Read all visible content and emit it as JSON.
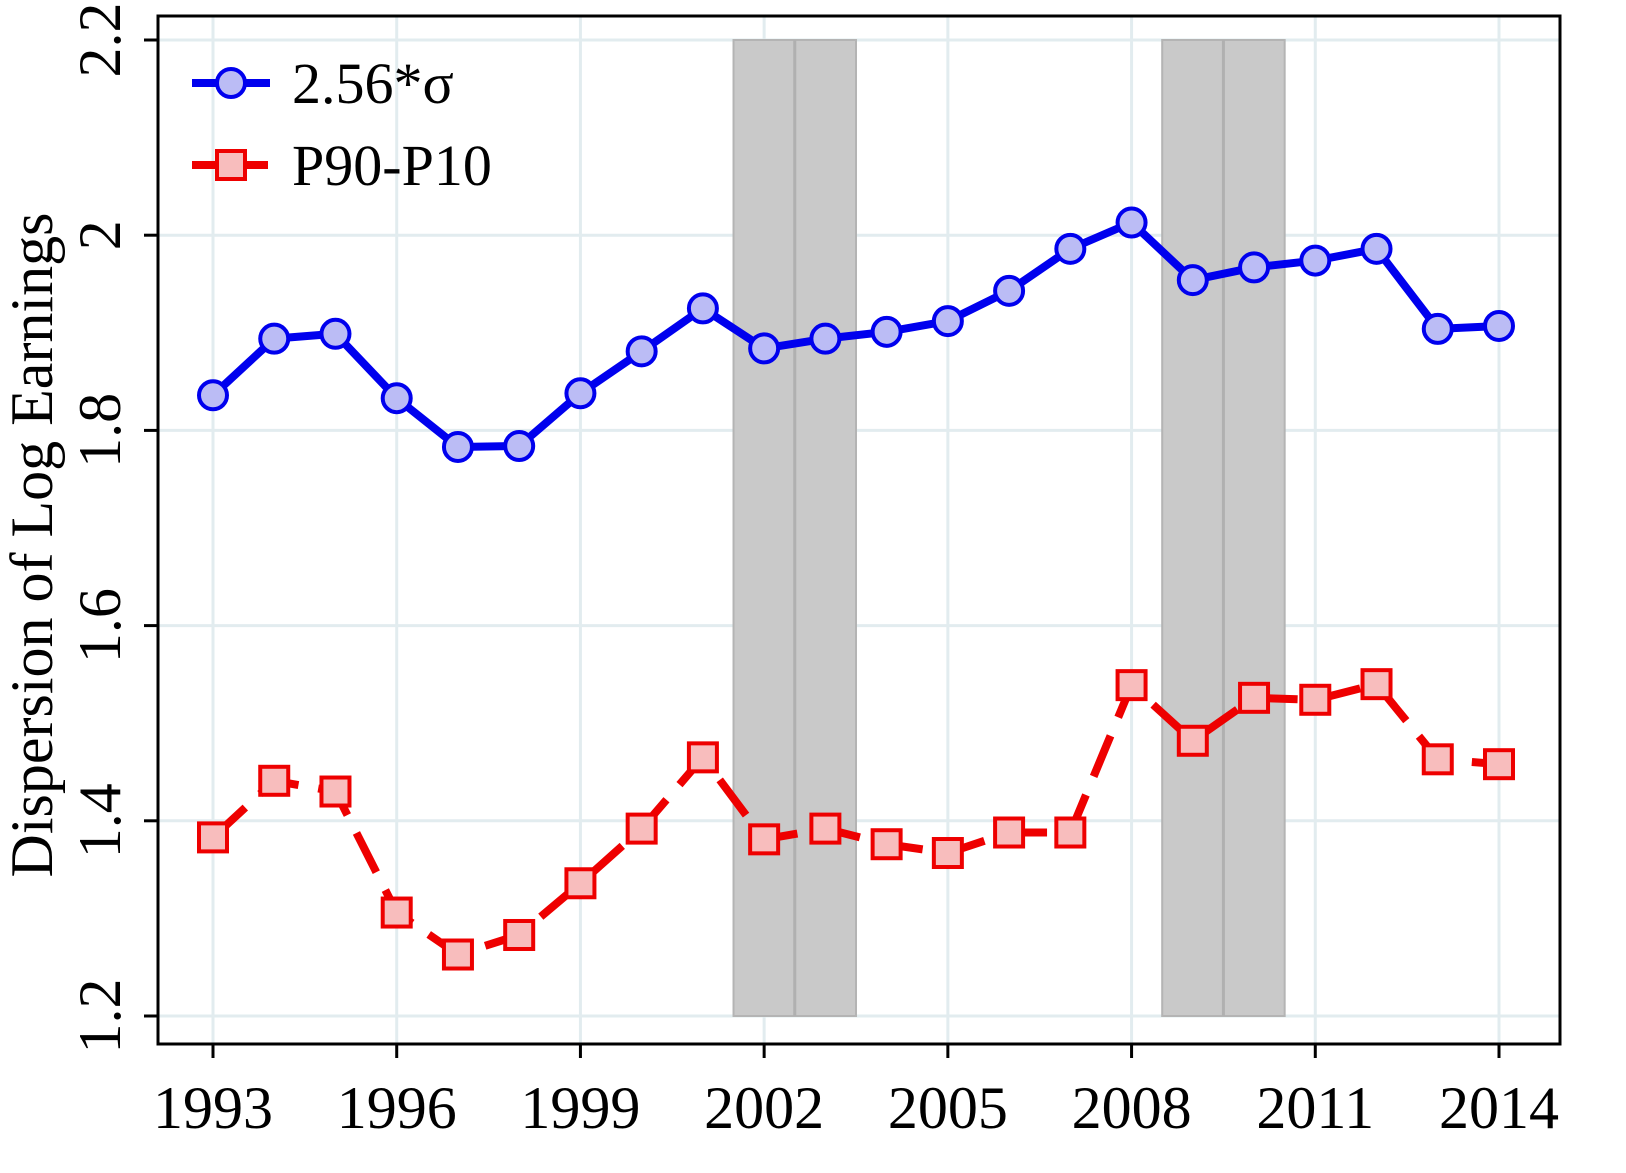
{
  "chart_data": {
    "type": "line",
    "title": "",
    "xlabel": "",
    "ylabel": "Dispersion of Log Earnings",
    "xlim": [
      1992.1,
      2015.0
    ],
    "ylim": [
      1.2,
      2.2
    ],
    "xticks": [
      1993,
      1996,
      1999,
      2002,
      2005,
      2008,
      2011,
      2014
    ],
    "xtick_labels": [
      "1993",
      "1996",
      "1999",
      "2002",
      "2005",
      "2008",
      "2011",
      "2014"
    ],
    "yticks": [
      1.2,
      1.4,
      1.6,
      1.8,
      2.0,
      2.2
    ],
    "ytick_labels": [
      "1.2",
      "1.4",
      "1.6",
      "1.8",
      "2",
      "2.2"
    ],
    "grid": true,
    "legend_position": "top-left",
    "shaded_regions": [
      [
        2001.5,
        2003.5
      ],
      [
        2008.5,
        2010.5
      ]
    ],
    "shaded_dividers": [
      2002.5,
      2009.5
    ],
    "x": [
      1993,
      1994,
      1995,
      1996,
      1997,
      1998,
      1999,
      2000,
      2001,
      2002,
      2003,
      2004,
      2005,
      2006,
      2007,
      2008,
      2009,
      2010,
      2011,
      2012,
      2013,
      2014
    ],
    "series": [
      {
        "name": "2.56*σ",
        "color": "#0000ee",
        "marker": "circle",
        "marker_fill": "#bbbcf5",
        "line_style": "solid",
        "values": [
          1.836,
          1.894,
          1.899,
          1.833,
          1.783,
          1.784,
          1.838,
          1.881,
          1.925,
          1.884,
          1.894,
          1.901,
          1.912,
          1.943,
          1.986,
          2.013,
          1.954,
          1.967,
          1.974,
          1.986,
          1.904,
          1.907
        ]
      },
      {
        "name": "P90-P10",
        "color": "#ee0000",
        "marker": "square",
        "marker_fill": "#f8bdbd",
        "line_style": "dashed",
        "values": [
          1.383,
          1.441,
          1.43,
          1.306,
          1.263,
          1.283,
          1.336,
          1.392,
          1.465,
          1.381,
          1.392,
          1.376,
          1.367,
          1.388,
          1.388,
          1.539,
          1.482,
          1.526,
          1.524,
          1.54,
          1.463,
          1.458
        ]
      }
    ]
  }
}
